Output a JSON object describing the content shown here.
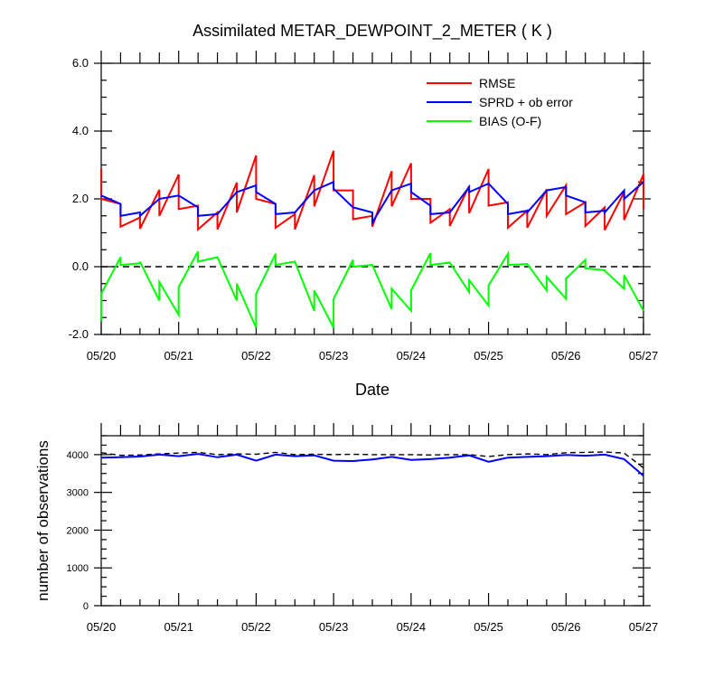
{
  "title": "Assimilated METAR_DEWPOINT_2_METER ( K )",
  "colors": {
    "rmse": "#ff0000",
    "sprd": "#0000ff",
    "bias": "#00ff00",
    "zero_line": "#000000",
    "possible_obs": "#000000",
    "used_obs": "#0000ff"
  },
  "chart_data": [
    {
      "type": "line",
      "xlabel": "Date",
      "ylabel": "",
      "x_ticks": [
        "05/20",
        "05/21",
        "05/22",
        "05/23",
        "05/24",
        "05/25",
        "05/26",
        "05/27"
      ],
      "xlim": [
        0,
        7
      ],
      "ylim": [
        -2.0,
        6.0
      ],
      "y_ticks": [
        "6.0",
        "4.0",
        "2.0",
        "0.0",
        "-2.0"
      ],
      "y_tick_values": [
        6.0,
        4.0,
        2.0,
        0.0,
        -2.0
      ],
      "legend_position": "top-right",
      "reference_line": 0.0,
      "series": [
        {
          "name": "RMSE",
          "key": "rmse",
          "x": [
            0,
            0,
            0.25,
            0.25,
            0.5,
            0.5,
            0.75,
            0.75,
            1.0,
            1.0,
            1.25,
            1.25,
            1.5,
            1.5,
            1.75,
            1.75,
            2.0,
            2.0,
            2.25,
            2.25,
            2.5,
            2.5,
            2.75,
            2.75,
            3.0,
            3.0,
            3.25,
            3.25,
            3.5,
            3.5,
            3.75,
            3.75,
            4.0,
            4.0,
            4.25,
            4.25,
            4.5,
            4.5,
            4.75,
            4.75,
            5.0,
            5.0,
            5.25,
            5.25,
            5.5,
            5.5,
            5.75,
            5.75,
            6.0,
            6.0,
            6.25,
            6.25,
            6.5,
            6.5,
            6.75,
            6.75,
            7.0,
            7.0
          ],
          "values": [
            2.9,
            2.0,
            1.85,
            1.18,
            1.45,
            1.12,
            2.27,
            1.5,
            2.72,
            1.7,
            1.8,
            1.1,
            1.6,
            1.1,
            2.48,
            1.6,
            3.28,
            2.0,
            1.85,
            1.15,
            1.55,
            1.1,
            2.7,
            1.78,
            3.42,
            2.25,
            2.25,
            1.4,
            1.5,
            1.18,
            2.82,
            1.78,
            3.05,
            2.0,
            2.0,
            1.3,
            1.7,
            1.2,
            2.38,
            1.58,
            2.88,
            1.8,
            1.9,
            1.15,
            1.65,
            1.15,
            2.28,
            1.5,
            2.4,
            1.55,
            1.9,
            1.2,
            1.75,
            1.08,
            2.2,
            1.38,
            2.72,
            1.7
          ]
        },
        {
          "name": "SPRD + ob error",
          "key": "sprd",
          "x": [
            0,
            0,
            0.25,
            0.25,
            0.5,
            0.5,
            0.75,
            0.75,
            1.0,
            1.0,
            1.25,
            1.25,
            1.5,
            1.5,
            1.75,
            1.75,
            2.0,
            2.0,
            2.25,
            2.25,
            2.5,
            2.5,
            2.75,
            2.75,
            3.0,
            3.0,
            3.25,
            3.25,
            3.5,
            3.5,
            3.75,
            3.75,
            4.0,
            4.0,
            4.25,
            4.25,
            4.5,
            4.5,
            4.75,
            4.75,
            5.0,
            5.0,
            5.25,
            5.25,
            5.5,
            5.5,
            5.75,
            5.75,
            6.0,
            6.0,
            6.25,
            6.25,
            6.5,
            6.5,
            6.75,
            6.75,
            7.0
          ],
          "values": [
            2.1,
            2.1,
            1.85,
            1.5,
            1.6,
            1.5,
            2.0,
            2.0,
            2.1,
            2.1,
            1.75,
            1.5,
            1.55,
            1.55,
            2.2,
            2.2,
            2.4,
            2.2,
            1.85,
            1.55,
            1.6,
            1.6,
            2.25,
            2.25,
            2.5,
            2.3,
            1.75,
            1.75,
            1.6,
            1.3,
            2.25,
            2.25,
            2.45,
            2.2,
            1.8,
            1.55,
            1.6,
            1.6,
            2.35,
            2.2,
            2.45,
            2.45,
            1.85,
            1.55,
            1.65,
            1.6,
            2.25,
            2.25,
            2.35,
            2.1,
            1.9,
            1.6,
            1.65,
            1.6,
            2.25,
            2.0,
            2.5
          ]
        },
        {
          "name": "BIAS (O-F)",
          "key": "bias",
          "x": [
            0,
            0,
            0.25,
            0.25,
            0.5,
            0.5,
            0.75,
            0.75,
            1.0,
            1.0,
            1.25,
            1.25,
            1.5,
            1.5,
            1.75,
            1.75,
            2.0,
            2.0,
            2.25,
            2.25,
            2.5,
            2.5,
            2.75,
            2.75,
            3.0,
            3.0,
            3.25,
            3.25,
            3.5,
            3.5,
            3.75,
            3.75,
            4.0,
            4.0,
            4.25,
            4.25,
            4.5,
            4.5,
            4.75,
            4.75,
            5.0,
            5.0,
            5.25,
            5.25,
            5.5,
            5.5,
            5.75,
            5.75,
            6.0,
            6.0,
            6.25,
            6.25,
            6.5,
            6.5,
            6.75,
            6.75,
            7.0
          ],
          "values": [
            -1.6,
            -0.8,
            0.28,
            0.05,
            0.1,
            0.15,
            -1.0,
            -0.45,
            -1.42,
            -0.6,
            0.45,
            0.15,
            0.28,
            0.28,
            -1.0,
            -0.5,
            -1.8,
            -0.8,
            0.38,
            0.05,
            0.15,
            0.15,
            -1.3,
            -0.7,
            -1.8,
            -0.95,
            0.2,
            0.0,
            0.05,
            0.05,
            -1.25,
            -0.65,
            -1.3,
            -0.7,
            0.4,
            0.05,
            0.12,
            0.12,
            -0.75,
            -0.4,
            -1.15,
            -0.55,
            0.38,
            0.05,
            0.08,
            0.08,
            -0.7,
            -0.3,
            -0.95,
            -0.35,
            0.2,
            -0.05,
            -0.1,
            -0.12,
            -0.65,
            -0.25,
            -1.3
          ]
        }
      ]
    },
    {
      "type": "line",
      "xlabel": "",
      "ylabel": "number of observations",
      "x_ticks": [
        "05/20",
        "05/21",
        "05/22",
        "05/23",
        "05/24",
        "05/25",
        "05/26",
        "05/27"
      ],
      "xlim": [
        0,
        7
      ],
      "ylim": [
        0,
        4500
      ],
      "y_ticks": [
        "4000",
        "3000",
        "2000",
        "1000",
        "0"
      ],
      "y_tick_values": [
        4000,
        3000,
        2000,
        1000,
        0
      ],
      "series": [
        {
          "key": "possible_obs",
          "style": "dashed",
          "x": [
            0,
            0.25,
            0.5,
            0.75,
            1.0,
            1.25,
            1.5,
            1.75,
            2.0,
            2.25,
            2.5,
            2.75,
            3.0,
            3.25,
            3.5,
            3.75,
            4.0,
            4.25,
            4.5,
            4.75,
            5.0,
            5.25,
            5.5,
            5.75,
            6.0,
            6.25,
            6.5,
            6.75,
            7.0
          ],
          "values": [
            4050,
            3980,
            3990,
            4020,
            4040,
            4060,
            4000,
            4020,
            4010,
            4060,
            4000,
            4010,
            4000,
            4010,
            4000,
            4000,
            4000,
            3990,
            4000,
            4000,
            3950,
            4000,
            4020,
            4000,
            4050,
            4060,
            4070,
            4040,
            3650
          ]
        },
        {
          "key": "used_obs",
          "style": "solid",
          "x": [
            0,
            0.25,
            0.5,
            0.75,
            1.0,
            1.25,
            1.5,
            1.75,
            2.0,
            2.25,
            2.5,
            2.75,
            3.0,
            3.25,
            3.5,
            3.75,
            4.0,
            4.25,
            4.5,
            4.75,
            5.0,
            5.25,
            5.5,
            5.75,
            6.0,
            6.25,
            6.5,
            6.75,
            7.0
          ],
          "values": [
            3920,
            3930,
            3950,
            4000,
            3960,
            4020,
            3930,
            4000,
            3840,
            4000,
            3960,
            3980,
            3840,
            3830,
            3870,
            3940,
            3860,
            3880,
            3920,
            3980,
            3810,
            3920,
            3940,
            3960,
            3990,
            3970,
            4000,
            3880,
            3440
          ]
        }
      ]
    }
  ]
}
